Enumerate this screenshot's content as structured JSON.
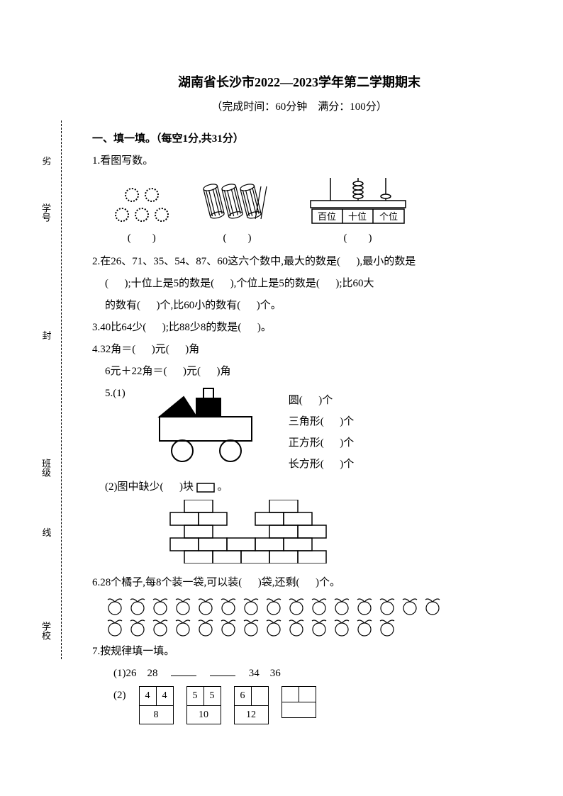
{
  "title": "湖南省长沙市2022—2023学年第二学期期末",
  "subtitle": "（完成时间：60分钟　满分：100分）",
  "section1": {
    "header": "一、填一填。（每空1分,共31分）",
    "q1": {
      "label": "1.看图写数。",
      "fill": "(　　)",
      "abacus_cols": [
        "百位",
        "十位",
        "个位"
      ]
    },
    "q2": {
      "line1": "2.在26、71、35、54、87、60这六个数中,最大的数是( 　 ),最小的数是",
      "line2": "( 　 );十位上是5的数是( 　 ),个位上是5的数是( 　 );比60大",
      "line3": "的数有( 　 )个,比60小的数有( 　 )个。"
    },
    "q3": "3.40比64少( 　 );比88少8的数是( 　 )。",
    "q4": {
      "line1": "4.32角＝( 　 )元( 　 )角",
      "line2": "6元＋22角＝( 　 )元( 　 )角"
    },
    "q5": {
      "prefix": "5.(1)",
      "shapes": [
        {
          "name": "圆",
          "suffix": "( 　 )个"
        },
        {
          "name": "三角形",
          "suffix": "( 　 )个"
        },
        {
          "name": "正方形",
          "suffix": "( 　 )个"
        },
        {
          "name": "长方形",
          "suffix": "( 　 )个"
        }
      ],
      "part2": "(2)图中缺少( 　 )块"
    },
    "q6": "6.28个橘子,每8个装一袋,可以装( 　 )袋,还剩( 　 )个。",
    "q7": {
      "header": "7.按规律填一填。",
      "seq_prefix": "(1)26　28",
      "seq_suffix": "34　36",
      "part2_label": "(2)",
      "tables": [
        {
          "tl": "4",
          "tr": "4",
          "b": "8"
        },
        {
          "tl": "5",
          "tr": "5",
          "b": "10"
        },
        {
          "tl": "6",
          "tr": "",
          "b": "12"
        },
        {
          "tl": "",
          "tr": "",
          "b": ""
        }
      ]
    }
  },
  "side": {
    "chars": [
      "劣",
      "封",
      "线"
    ],
    "labels": [
      "学号",
      "班级",
      "学校"
    ]
  },
  "colors": {
    "text": "#000000",
    "bg": "#ffffff"
  }
}
